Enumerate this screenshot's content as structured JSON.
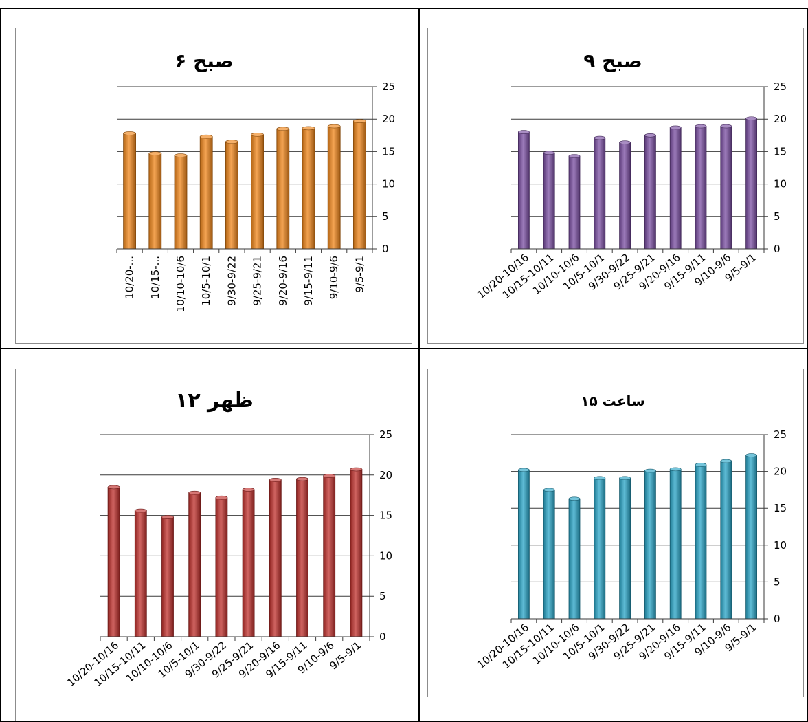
{
  "chart_data": [
    {
      "type": "bar",
      "title": "۶ صبح",
      "categories": [
        "10/20-...",
        "10/15-...",
        "10/10-10/6",
        "10/5-10/1",
        "9/30-9/22",
        "9/25-9/21",
        "9/20-9/16",
        "9/15-9/11",
        "9/10-9/6",
        "9/5-9/1"
      ],
      "values": [
        17.8,
        14.7,
        14.4,
        17.3,
        16.5,
        17.6,
        18.5,
        18.6,
        18.9,
        19.7
      ],
      "yticks": [
        "0",
        "5",
        "10",
        "15",
        "20",
        "25"
      ],
      "ylim": [
        0,
        25
      ],
      "grid": true,
      "color": "#f0861a",
      "xlabel": "",
      "ylabel": ""
    },
    {
      "type": "bar",
      "title": "۹ صبح",
      "categories": [
        "10/20-10/16",
        "10/15-10/11",
        "10/10-10/6",
        "10/5-10/1",
        "9/30-9/22",
        "9/25-9/21",
        "9/20-9/16",
        "9/15-9/11",
        "9/10-9/6",
        "9/5-9/1"
      ],
      "values": [
        18.0,
        14.8,
        14.3,
        17.1,
        16.4,
        17.5,
        18.7,
        18.9,
        18.9,
        20.1
      ],
      "yticks": [
        "0",
        "5",
        "10",
        "15",
        "20",
        "25"
      ],
      "ylim": [
        0,
        25
      ],
      "grid": true,
      "color": "#7b4fa3",
      "xlabel": "",
      "ylabel": ""
    },
    {
      "type": "bar",
      "title": "۱۲ ظهر",
      "categories": [
        "10/20-10/16",
        "10/15-10/11",
        "10/10-10/6",
        "10/5-10/1",
        "9/30-9/22",
        "9/25-9/21",
        "9/20-9/16",
        "9/15-9/11",
        "9/10-9/6",
        "9/5-9/1"
      ],
      "values": [
        18.5,
        15.6,
        14.8,
        17.8,
        17.2,
        18.2,
        19.4,
        19.5,
        19.9,
        20.7
      ],
      "yticks": [
        "0",
        "5",
        "10",
        "15",
        "20",
        "25"
      ],
      "ylim": [
        0,
        25
      ],
      "grid": true,
      "color": "#c0302c",
      "xlabel": "",
      "ylabel": ""
    },
    {
      "type": "bar",
      "title": "ساعت ۱۵",
      "categories": [
        "10/20-10/16",
        "10/15-10/11",
        "10/10-10/6",
        "10/5-10/1",
        "9/30-9/22",
        "9/25-9/21",
        "9/20-9/16",
        "9/15-9/11",
        "9/10-9/6",
        "9/5-9/1"
      ],
      "values": [
        20.2,
        17.5,
        16.3,
        19.1,
        19.1,
        20.1,
        20.3,
        20.9,
        21.4,
        22.2
      ],
      "yticks": [
        "0",
        "5",
        "10",
        "15",
        "20",
        "25"
      ],
      "ylim": [
        0,
        25
      ],
      "grid": true,
      "color": "#2aa6c8",
      "xlabel": "",
      "ylabel": ""
    }
  ]
}
